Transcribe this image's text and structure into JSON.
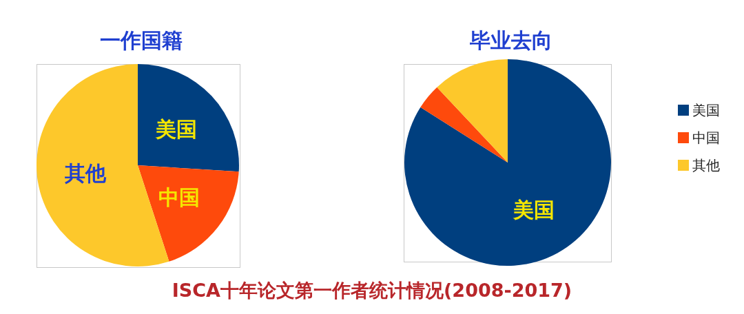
{
  "chart_data": [
    {
      "type": "pie",
      "title": "一作国籍",
      "categories": [
        "美国",
        "中国",
        "其他"
      ],
      "values": [
        26,
        19,
        55
      ],
      "colors": [
        "#003f7f",
        "#fe4a0c",
        "#fdc82b"
      ],
      "legend": false
    },
    {
      "type": "pie",
      "title": "毕业去向",
      "categories": [
        "美国",
        "中国",
        "其他"
      ],
      "values": [
        84,
        4,
        12
      ],
      "colors": [
        "#003f7f",
        "#fe4a0c",
        "#fdc82b"
      ],
      "legend": "right",
      "annotations": [
        "ISCA十年论文第一作者统计情况(2008-2017)"
      ]
    }
  ]
}
